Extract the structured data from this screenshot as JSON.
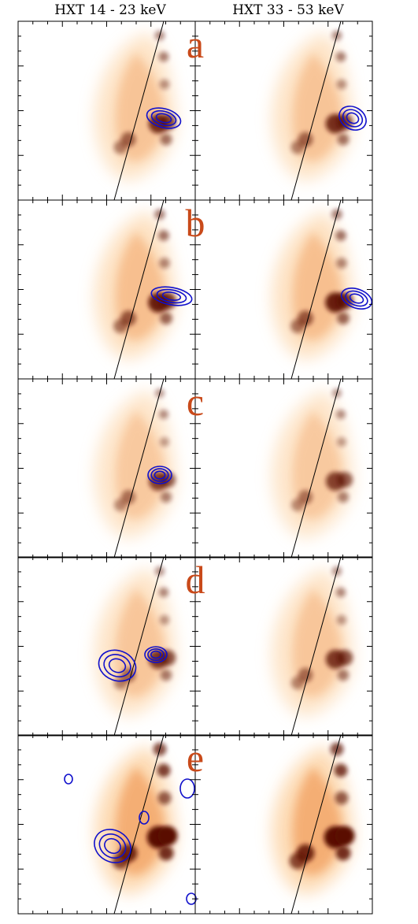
{
  "columns": [
    {
      "title": "HXT 14 - 23 keV"
    },
    {
      "title": "HXT 33 - 53 keV"
    }
  ],
  "panels": [
    {
      "label": "a",
      "left_contours": true,
      "right_contours": true
    },
    {
      "label": "b",
      "left_contours": true,
      "right_contours": true
    },
    {
      "label": "c",
      "left_contours": true,
      "right_contours": false
    },
    {
      "label": "d",
      "left_contours": true,
      "right_contours": false
    },
    {
      "label": "e",
      "left_contours": true,
      "right_contours": false
    }
  ],
  "colors": {
    "label": "#c94a1a",
    "contour": "#1010cc",
    "image_base": "#fdd9b0",
    "image_dark": "#5a1000",
    "frame": "#000000"
  }
}
